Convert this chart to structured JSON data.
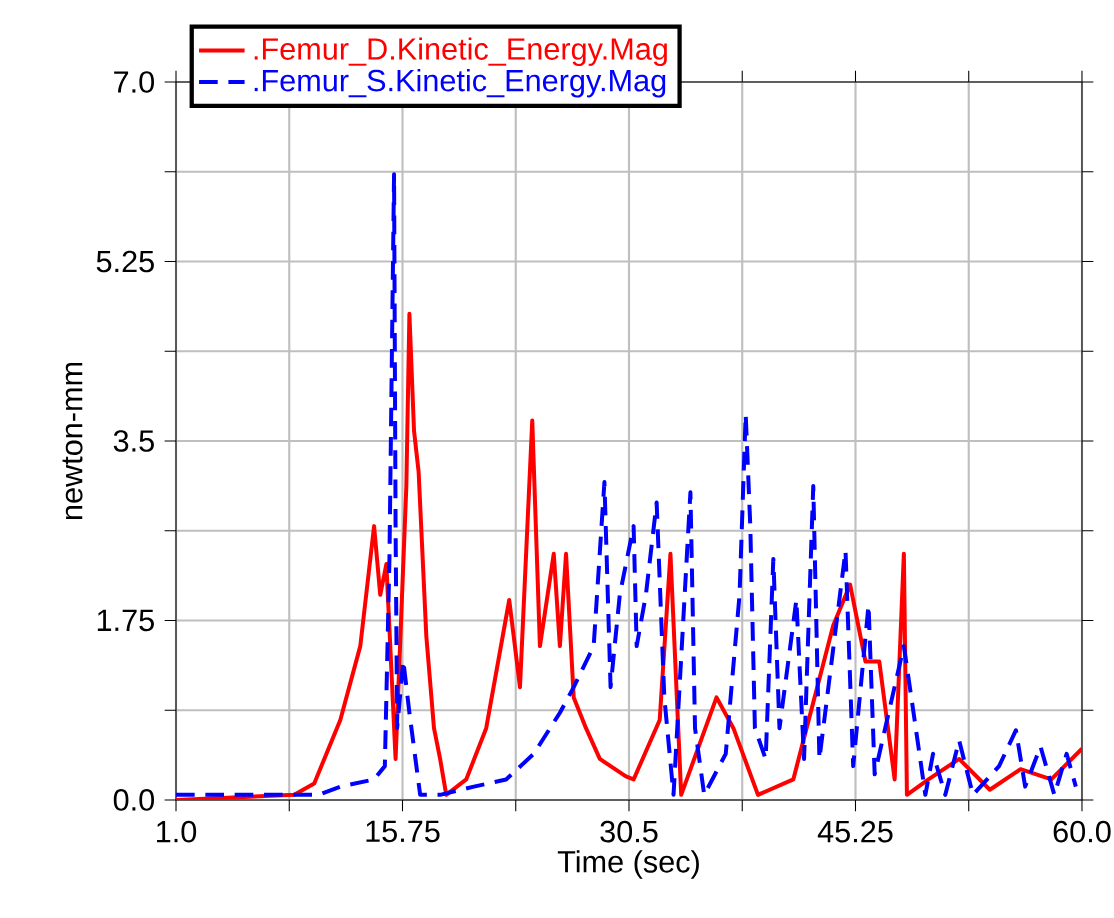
{
  "chart_data": {
    "type": "line",
    "xlabel": "Time (sec)",
    "ylabel": "newton-mm",
    "xlim": [
      1.0,
      60.0
    ],
    "ylim": [
      0.0,
      7.0
    ],
    "xticks": [
      {
        "value": 1.0,
        "label": "1.0"
      },
      {
        "value": 8.375,
        "label": null
      },
      {
        "value": 15.75,
        "label": "15.75"
      },
      {
        "value": 23.125,
        "label": null
      },
      {
        "value": 30.5,
        "label": "30.5"
      },
      {
        "value": 37.875,
        "label": null
      },
      {
        "value": 45.25,
        "label": "45.25"
      },
      {
        "value": 52.625,
        "label": null
      },
      {
        "value": 60.0,
        "label": "60.0"
      }
    ],
    "yticks": [
      {
        "value": 0.0,
        "label": "0.0"
      },
      {
        "value": 0.875,
        "label": null
      },
      1.75,
      {
        "value": 2.625,
        "label": null
      },
      3.5,
      {
        "value": 4.375,
        "label": null
      },
      5.25,
      {
        "value": 6.125,
        "label": null
      },
      {
        "value": 7.0,
        "label": "7.0"
      }
    ],
    "grid": true,
    "legend": "top left",
    "series": [
      {
        "name": ".Femur_D.Kinetic_Energy.Mag",
        "color": "#ff0000",
        "line_style": "solid",
        "x": [
          1.0,
          8.7,
          10.0,
          11.7,
          13.0,
          13.9,
          14.3,
          14.7,
          15.3,
          16.0,
          16.2,
          16.5,
          16.8,
          17.3,
          17.8,
          18.2,
          18.6,
          19.9,
          21.2,
          22.7,
          23.4,
          24.2,
          24.7,
          25.6,
          26.0,
          26.4,
          26.9,
          27.7,
          28.6,
          30.3,
          30.8,
          32.5,
          33.2,
          33.9,
          36.2,
          37.3,
          38.9,
          41.2,
          43.8,
          44.9,
          45.9,
          46.8,
          47.8,
          48.4,
          48.6,
          50.0,
          52.0,
          54.0,
          56.0,
          58.0,
          60.0
        ],
        "values": [
          0.0,
          0.05,
          0.16,
          0.78,
          1.5,
          2.67,
          2.0,
          2.3,
          0.4,
          3.06,
          4.74,
          3.6,
          3.2,
          1.6,
          0.7,
          0.4,
          0.05,
          0.2,
          0.7,
          1.95,
          1.1,
          3.7,
          1.5,
          2.4,
          1.5,
          2.4,
          1.0,
          0.7,
          0.4,
          0.23,
          0.2,
          0.78,
          2.4,
          0.05,
          1.0,
          0.7,
          0.05,
          0.2,
          1.7,
          2.1,
          1.35,
          1.35,
          0.2,
          2.4,
          0.05,
          0.2,
          0.4,
          0.1,
          0.3,
          0.2,
          0.5
        ]
      },
      {
        "name": ".Femur_S.Kinetic_Energy.Mag",
        "color": "#0000ff",
        "line_style": "dashed",
        "x": [
          1.0,
          10.3,
          11.7,
          13.9,
          14.6,
          14.9,
          15.2,
          15.3,
          15.4,
          15.8,
          16.2,
          16.9,
          18.2,
          20.4,
          22.5,
          24.3,
          26.0,
          26.9,
          28.2,
          28.9,
          29.3,
          29.9,
          30.8,
          31.0,
          31.6,
          32.3,
          32.8,
          33.4,
          34.5,
          34.8,
          35.4,
          36.8,
          37.7,
          38.1,
          38.4,
          38.7,
          39.4,
          39.9,
          40.3,
          41.4,
          41.9,
          42.5,
          42.9,
          44.6,
          45.1,
          46.1,
          46.5,
          48.4,
          49.1,
          49.8,
          50.3,
          51.1,
          52.0,
          52.9,
          54.6,
          55.7,
          56.3,
          57.3,
          58.2,
          59.0,
          59.6
        ],
        "values": [
          0.05,
          0.05,
          0.13,
          0.2,
          0.33,
          2.35,
          6.1,
          2.67,
          0.7,
          1.36,
          0.85,
          0.05,
          0.05,
          0.13,
          0.2,
          0.45,
          0.85,
          1.1,
          1.5,
          3.1,
          1.1,
          2.0,
          2.67,
          1.5,
          2.0,
          2.9,
          1.0,
          0.05,
          3.0,
          0.7,
          0.05,
          0.45,
          2.0,
          3.76,
          2.67,
          0.7,
          0.4,
          2.35,
          0.7,
          1.95,
          0.4,
          3.06,
          0.4,
          2.43,
          0.33,
          1.9,
          0.25,
          1.5,
          0.78,
          0.05,
          0.45,
          0.05,
          0.58,
          0.05,
          0.33,
          0.68,
          0.13,
          0.52,
          0.05,
          0.45,
          0.13
        ]
      }
    ]
  }
}
